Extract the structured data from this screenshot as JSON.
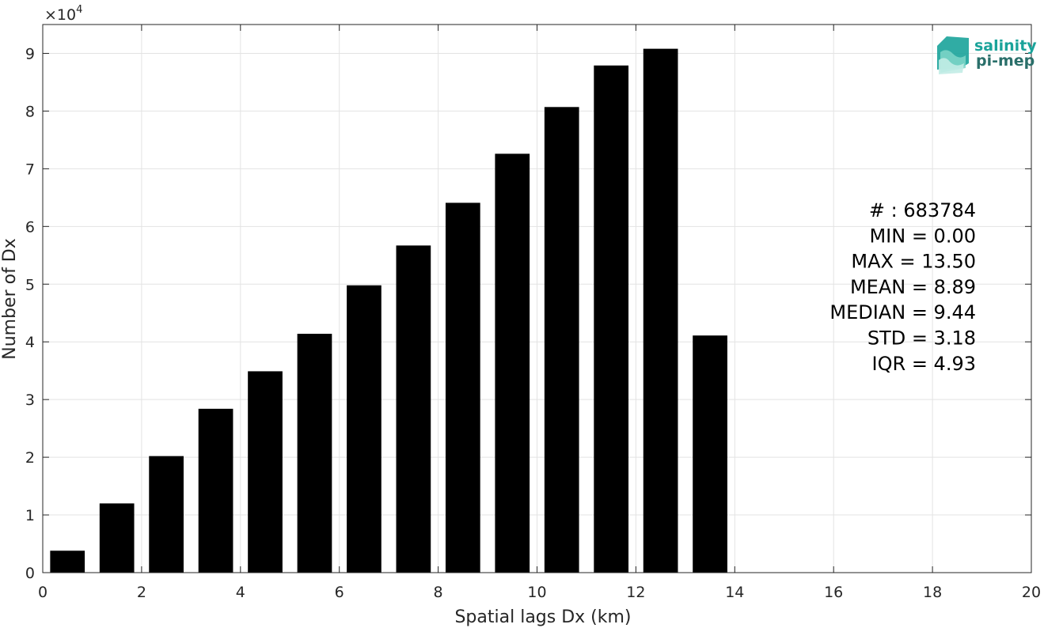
{
  "chart_data": {
    "type": "bar",
    "x": [
      0.5,
      1.5,
      2.5,
      3.5,
      4.5,
      5.5,
      6.5,
      7.5,
      8.5,
      9.5,
      10.5,
      11.5,
      12.5,
      13.5
    ],
    "values": [
      3800,
      12000,
      20200,
      28400,
      34900,
      41400,
      49800,
      56700,
      64100,
      72600,
      80700,
      87900,
      90800,
      41100
    ],
    "xlabel": "Spatial lags Dx (km)",
    "ylabel": "Number of Dx",
    "y_multiplier_label": "×10",
    "y_multiplier_exponent": "4",
    "xlim": [
      0,
      20
    ],
    "ylim": [
      0,
      9.5
    ],
    "y_scale": 10000,
    "xticks": [
      "0",
      "2",
      "4",
      "6",
      "8",
      "10",
      "12",
      "14",
      "16",
      "18",
      "20"
    ],
    "yticks": [
      "0",
      "1",
      "2",
      "3",
      "4",
      "5",
      "6",
      "7",
      "8",
      "9"
    ],
    "grid": true,
    "bar_color": "#000000",
    "stats": [
      "# : 683784",
      "MIN = 0.00",
      "MAX =  13.50",
      "MEAN = 8.89",
      "MEDIAN = 9.44",
      "STD = 3.18",
      "IQR = 4.93"
    ]
  },
  "logo": {
    "line1": "salinity",
    "line2": "pi-mep",
    "color1": "#1aa39a",
    "color2": "#2a6f6a"
  }
}
